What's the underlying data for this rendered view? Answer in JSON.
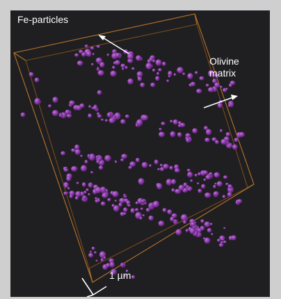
{
  "labels": {
    "fe_particles": "Fe-particles",
    "olivine": "Olivine",
    "matrix": "matrix",
    "scale": "1 µm"
  },
  "colors": {
    "border": "#cfcfcf",
    "background": "#1f1f22",
    "box_edge": "#b8742a",
    "particle": "#8a3aa8",
    "particle_highlight": "#b466cc",
    "text": "#ffffff"
  }
}
